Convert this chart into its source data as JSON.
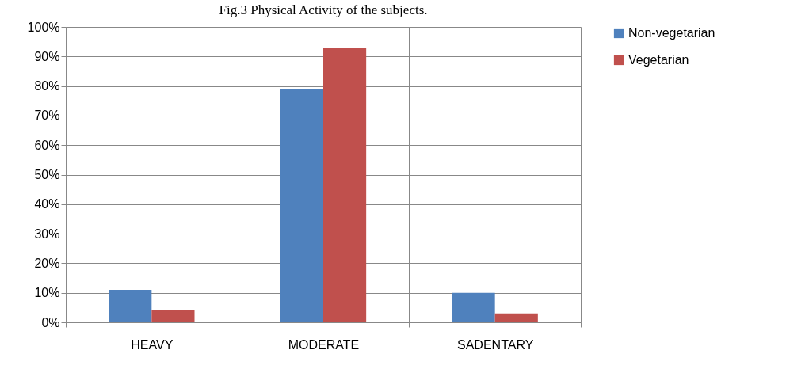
{
  "chart_data": {
    "type": "bar",
    "title": "Fig.3 Physical Activity of the subjects.",
    "categories": [
      "HEAVY",
      "MODERATE",
      "SADENTARY"
    ],
    "series": [
      {
        "name": "Non-vegetarian",
        "color": "#4f81bd",
        "values": [
          11,
          79,
          10
        ]
      },
      {
        "name": "Vegetarian",
        "color": "#c0504d",
        "values": [
          4,
          93,
          3
        ]
      }
    ],
    "ylim": [
      0,
      100
    ],
    "yticks": [
      {
        "value": 0,
        "label": "0%"
      },
      {
        "value": 10,
        "label": "10%"
      },
      {
        "value": 20,
        "label": "20%"
      },
      {
        "value": 30,
        "label": "30%"
      },
      {
        "value": 40,
        "label": "40%"
      },
      {
        "value": 50,
        "label": "50%"
      },
      {
        "value": 60,
        "label": "60%"
      },
      {
        "value": 70,
        "label": "70%"
      },
      {
        "value": 80,
        "label": "80%"
      },
      {
        "value": 90,
        "label": "90%"
      },
      {
        "value": 100,
        "label": "100%"
      }
    ],
    "grid": true,
    "legend": "right"
  }
}
